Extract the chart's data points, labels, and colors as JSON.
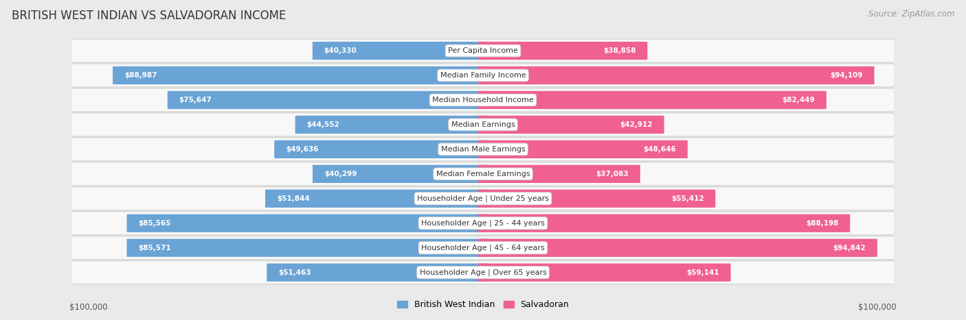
{
  "title": "BRITISH WEST INDIAN VS SALVADORAN INCOME",
  "source": "Source: ZipAtlas.com",
  "categories": [
    "Per Capita Income",
    "Median Family Income",
    "Median Household Income",
    "Median Earnings",
    "Median Male Earnings",
    "Median Female Earnings",
    "Householder Age | Under 25 years",
    "Householder Age | 25 - 44 years",
    "Householder Age | 45 - 64 years",
    "Householder Age | Over 65 years"
  ],
  "british_values": [
    40330,
    88987,
    75647,
    44552,
    49636,
    40299,
    51844,
    85565,
    85571,
    51463
  ],
  "salvadoran_values": [
    38858,
    94109,
    82449,
    42912,
    48646,
    37083,
    55412,
    88198,
    94842,
    59141
  ],
  "british_color_light": "#aac8e8",
  "british_color_dark": "#6aa3d5",
  "salvadoran_color_light": "#f5b8cc",
  "salvadoran_color_dark": "#f06090",
  "max_value": 100000,
  "background_color": "#eaeaea",
  "row_bg": "#f8f8f8",
  "row_border": "#d0d0d0",
  "legend_british": "British West Indian",
  "legend_salvadoran": "Salvadoran",
  "label_color_inside": "#ffffff",
  "label_color_outside": "#555555",
  "bar_height": 0.72,
  "figwidth": 14.06,
  "figheight": 4.67,
  "inside_threshold": 0.075
}
